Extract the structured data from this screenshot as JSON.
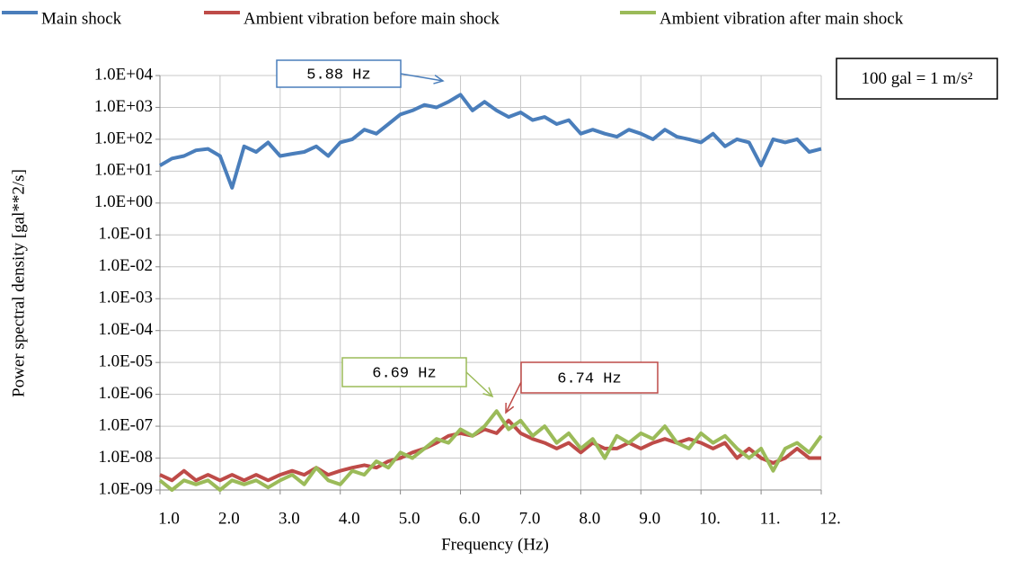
{
  "chart_data": {
    "type": "line",
    "yscale": "log",
    "grid": true,
    "legend": "top",
    "xlabel": "Frequency (Hz)",
    "ylabel": "Power spectral density [gal**2/s]",
    "xlim": [
      1,
      12
    ],
    "ylim": [
      1e-09,
      10000
    ],
    "xticks": [
      {
        "value": 1,
        "label": "1.0"
      },
      {
        "value": 2,
        "label": "2.0"
      },
      {
        "value": 3,
        "label": "3.0"
      },
      {
        "value": 4,
        "label": "4.0"
      },
      {
        "value": 5,
        "label": "5.0"
      },
      {
        "value": 6,
        "label": "6.0"
      },
      {
        "value": 7,
        "label": "7.0"
      },
      {
        "value": 8,
        "label": "8.0"
      },
      {
        "value": 9,
        "label": "9.0"
      },
      {
        "value": 10,
        "label": "10."
      },
      {
        "value": 11,
        "label": "11."
      },
      {
        "value": 12,
        "label": "12."
      }
    ],
    "yticks": [
      {
        "value": 10000,
        "label": "1.0E+04"
      },
      {
        "value": 1000,
        "label": "1.0E+03"
      },
      {
        "value": 100,
        "label": "1.0E+02"
      },
      {
        "value": 10,
        "label": "1.0E+01"
      },
      {
        "value": 1,
        "label": "1.0E+00"
      },
      {
        "value": 0.1,
        "label": "1.0E-01"
      },
      {
        "value": 0.01,
        "label": "1.0E-02"
      },
      {
        "value": 0.001,
        "label": "1.0E-03"
      },
      {
        "value": 0.0001,
        "label": "1.0E-04"
      },
      {
        "value": 1e-05,
        "label": "1.0E-05"
      },
      {
        "value": 1e-06,
        "label": "1.0E-06"
      },
      {
        "value": 1e-07,
        "label": "1.0E-07"
      },
      {
        "value": 1e-08,
        "label": "1.0E-08"
      },
      {
        "value": 1e-09,
        "label": "1.0E-09"
      }
    ],
    "x": [
      1,
      1.2,
      1.4,
      1.6,
      1.8,
      2,
      2.2,
      2.4,
      2.6,
      2.8,
      3,
      3.2,
      3.4,
      3.6,
      3.8,
      4,
      4.2,
      4.4,
      4.6,
      4.8,
      5,
      5.2,
      5.4,
      5.6,
      5.8,
      6,
      6.2,
      6.4,
      6.6,
      6.8,
      7,
      7.2,
      7.4,
      7.6,
      7.8,
      8,
      8.2,
      8.4,
      8.6,
      8.8,
      9,
      9.2,
      9.4,
      9.6,
      9.8,
      10,
      10.2,
      10.4,
      10.6,
      10.8,
      11,
      11.2,
      11.4,
      11.6,
      11.8,
      12
    ],
    "series": [
      {
        "name": "Main shock",
        "color": "#4a7ebb",
        "values": [
          15,
          25,
          30,
          45,
          50,
          30,
          3,
          60,
          40,
          80,
          30,
          35,
          40,
          60,
          30,
          80,
          100,
          200,
          150,
          300,
          600,
          800,
          1200,
          1000,
          1500,
          2500,
          800,
          1500,
          800,
          500,
          700,
          400,
          500,
          300,
          400,
          150,
          200,
          150,
          120,
          200,
          150,
          100,
          200,
          120,
          100,
          80,
          150,
          60,
          100,
          80,
          15,
          100,
          80,
          100,
          40,
          50
        ]
      },
      {
        "name": "Ambient vibration before main shock",
        "color": "#be4b48",
        "values": [
          3e-09,
          2e-09,
          4e-09,
          2e-09,
          3e-09,
          2e-09,
          3e-09,
          2e-09,
          3e-09,
          2e-09,
          3e-09,
          4e-09,
          3e-09,
          5e-09,
          3e-09,
          4e-09,
          5e-09,
          6e-09,
          5e-09,
          8e-09,
          1e-08,
          1.5e-08,
          2e-08,
          3e-08,
          5e-08,
          6e-08,
          5e-08,
          8e-08,
          6e-08,
          1.5e-07,
          6e-08,
          4e-08,
          3e-08,
          2e-08,
          3e-08,
          1.5e-08,
          3e-08,
          2e-08,
          2e-08,
          3e-08,
          2e-08,
          3e-08,
          4e-08,
          3e-08,
          4e-08,
          3e-08,
          2e-08,
          3e-08,
          1e-08,
          2e-08,
          1e-08,
          7e-09,
          1e-08,
          2e-08,
          1e-08,
          1e-08
        ]
      },
      {
        "name": "Ambient vibration after main shock",
        "color": "#9bbb59",
        "values": [
          2e-09,
          1e-09,
          2e-09,
          1.5e-09,
          2e-09,
          1e-09,
          2e-09,
          1.5e-09,
          2e-09,
          1.2e-09,
          2e-09,
          3e-09,
          1.5e-09,
          5e-09,
          2e-09,
          1.5e-09,
          4e-09,
          3e-09,
          8e-09,
          5e-09,
          1.5e-08,
          1e-08,
          2e-08,
          4e-08,
          3e-08,
          8e-08,
          5e-08,
          1e-07,
          3e-07,
          8e-08,
          1.5e-07,
          5e-08,
          1e-07,
          3e-08,
          6e-08,
          2e-08,
          4e-08,
          1e-08,
          5e-08,
          3e-08,
          6e-08,
          4e-08,
          1e-07,
          3e-08,
          2e-08,
          6e-08,
          3e-08,
          5e-08,
          2e-08,
          1e-08,
          2e-08,
          4e-09,
          2e-08,
          3e-08,
          1.5e-08,
          5e-08
        ]
      }
    ],
    "annotations": [
      {
        "text": "5.88 Hz",
        "color": "#4a7ebb"
      },
      {
        "text": "6.69 Hz",
        "color": "#9bbb59"
      },
      {
        "text": "6.74 Hz",
        "color": "#be4b48"
      },
      {
        "text": "100 gal = 1 m/s²",
        "color": "#000000"
      }
    ]
  }
}
